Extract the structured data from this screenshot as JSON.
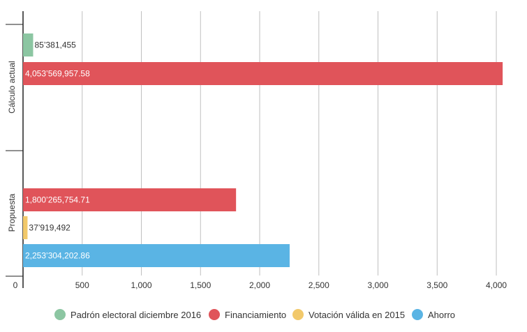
{
  "chart_data": {
    "type": "bar",
    "orientation": "horizontal",
    "categories": [
      "Cálculo actual",
      "Propuesta"
    ],
    "x_ticks": [
      0,
      500,
      1000,
      1500,
      2000,
      2500,
      3000,
      3500,
      4000
    ],
    "x_tick_labels": [
      "0",
      "500",
      "1,000",
      "1,500",
      "2,000",
      "2,500",
      "3,000",
      "3,500",
      "4,000"
    ],
    "xlim": [
      0,
      4100
    ],
    "grid": true,
    "legend_position": "bottom",
    "series": [
      {
        "name": "Padrón electoral diciembre 2016",
        "color": "#8cc6a2"
      },
      {
        "name": "Financiamiento",
        "color": "#e0545a"
      },
      {
        "name": "Votación válida en 2015",
        "color": "#f2c96b"
      },
      {
        "name": "Ahorro",
        "color": "#5ab4e4"
      }
    ],
    "bars": [
      {
        "category": "Cálculo actual",
        "series": "Padrón electoral diciembre 2016",
        "value": 85.381455,
        "label": "85’381,455"
      },
      {
        "category": "Cálculo actual",
        "series": "Financiamiento",
        "value": 4053.56995758,
        "label": "4,053’569,957.58"
      },
      {
        "category": "Propuesta",
        "series": "Financiamiento",
        "value": 1800.26575471,
        "label": "1,800’265,754.71"
      },
      {
        "category": "Propuesta",
        "series": "Votación válida en 2015",
        "value": 37.919492,
        "label": "37’919,492"
      },
      {
        "category": "Propuesta",
        "series": "Ahorro",
        "value": 2253.30420286,
        "label": "2,253’304,202.86"
      }
    ]
  }
}
